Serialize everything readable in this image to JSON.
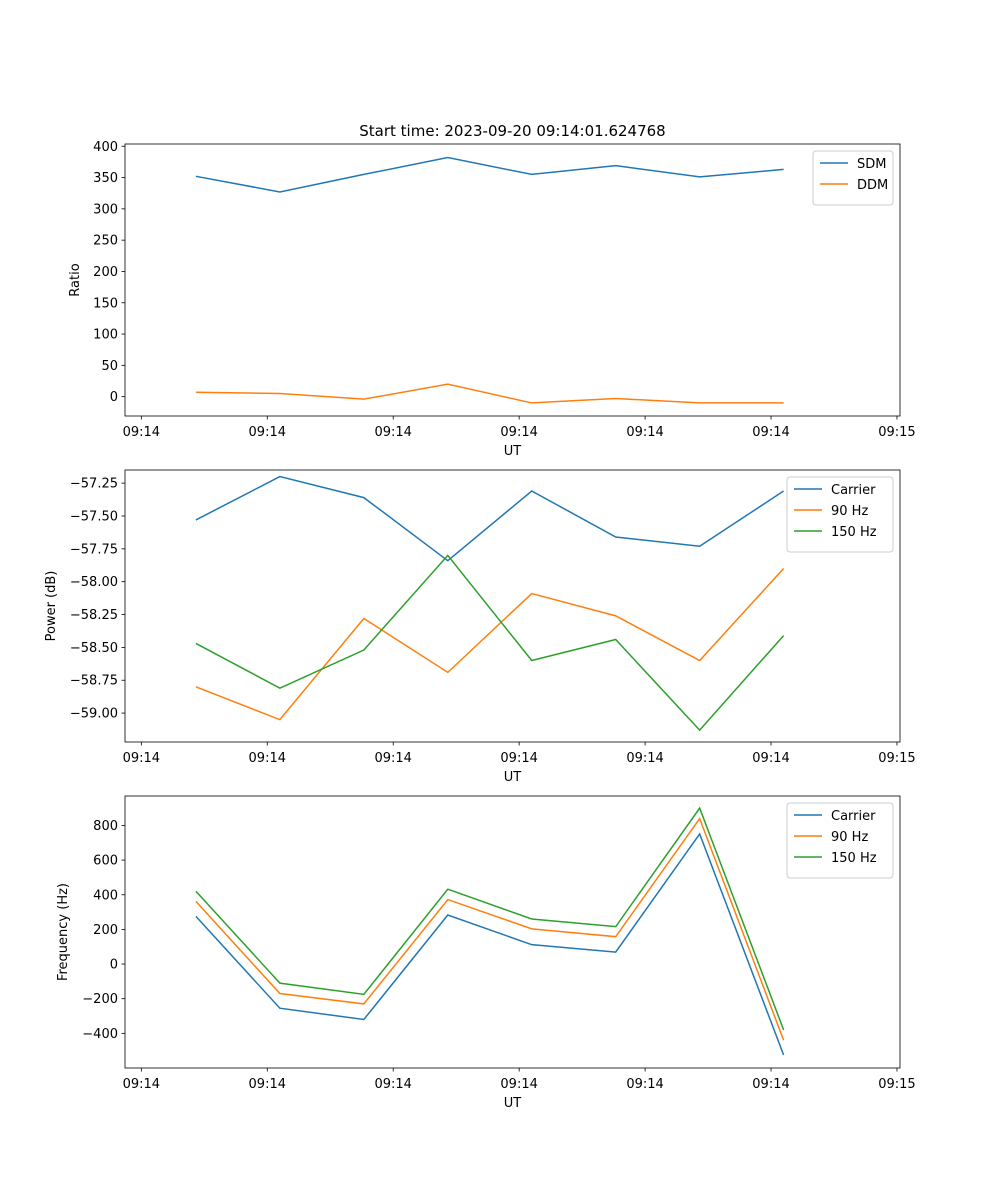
{
  "figure": {
    "title": "Start time: 2023-09-20 09:14:01.624768"
  },
  "chart_data": [
    {
      "type": "line",
      "title": "Start time: 2023-09-20 09:14:01.624768",
      "xlabel": "UT",
      "ylabel": "Ratio",
      "x_tick_labels": [
        "09:14",
        "09:14",
        "09:14",
        "09:14",
        "09:14",
        "09:14",
        "09:15"
      ],
      "x": [
        1,
        2,
        3,
        4,
        5,
        6,
        7,
        8
      ],
      "xlim": [
        0.1554,
        9.3861
      ],
      "ylim": [
        -30.9,
        403.6
      ],
      "y_ticks": [
        0,
        50,
        100,
        150,
        200,
        250,
        300,
        350,
        400
      ],
      "y_tick_labels": [
        "0",
        "50",
        "100",
        "150",
        "200",
        "250",
        "300",
        "350",
        "400"
      ],
      "legend_position": "top-right",
      "series": [
        {
          "name": "SDM",
          "color": "#1f77b4",
          "values": [
            352,
            327,
            355,
            382,
            355,
            369,
            351,
            363
          ]
        },
        {
          "name": "DDM",
          "color": "#ff7f0e",
          "values": [
            7,
            5,
            -4,
            20,
            -10,
            -3,
            -10,
            -10
          ]
        }
      ]
    },
    {
      "type": "line",
      "title": "",
      "xlabel": "UT",
      "ylabel": "Power (dB)",
      "x_tick_labels": [
        "09:14",
        "09:14",
        "09:14",
        "09:14",
        "09:14",
        "09:14",
        "09:15"
      ],
      "x": [
        1,
        2,
        3,
        4,
        5,
        6,
        7,
        8
      ],
      "xlim": [
        0.1554,
        9.3861
      ],
      "ylim": [
        -59.22,
        -57.15
      ],
      "y_ticks": [
        -59.0,
        -58.75,
        -58.5,
        -58.25,
        -58.0,
        -57.75,
        -57.5,
        -57.25
      ],
      "y_tick_labels": [
        "−59.00",
        "−58.75",
        "−58.50",
        "−58.25",
        "−58.00",
        "−57.75",
        "−57.50",
        "−57.25"
      ],
      "legend_position": "top-right",
      "series": [
        {
          "name": "Carrier",
          "color": "#1f77b4",
          "values": [
            -57.53,
            -57.2,
            -57.36,
            -57.84,
            -57.31,
            -57.66,
            -57.73,
            -57.31
          ]
        },
        {
          "name": "90 Hz",
          "color": "#ff7f0e",
          "values": [
            -58.8,
            -59.05,
            -58.28,
            -58.69,
            -58.09,
            -58.26,
            -58.6,
            -57.9
          ]
        },
        {
          "name": "150 Hz",
          "color": "#2ca02c",
          "values": [
            -58.47,
            -58.81,
            -58.52,
            -57.8,
            -58.6,
            -58.44,
            -59.13,
            -58.41
          ]
        }
      ]
    },
    {
      "type": "line",
      "title": "",
      "xlabel": "UT",
      "ylabel": "Frequency (Hz)",
      "x_tick_labels": [
        "09:14",
        "09:14",
        "09:14",
        "09:14",
        "09:14",
        "09:14",
        "09:15"
      ],
      "x": [
        1,
        2,
        3,
        4,
        5,
        6,
        7,
        8
      ],
      "xlim": [
        0.1554,
        9.3861
      ],
      "ylim": [
        -600,
        970
      ],
      "y_ticks": [
        -400,
        -200,
        0,
        200,
        400,
        600,
        800
      ],
      "y_tick_labels": [
        "−400",
        "−200",
        "0",
        "200",
        "400",
        "600",
        "800"
      ],
      "legend_position": "top-right",
      "series": [
        {
          "name": "Carrier",
          "color": "#1f77b4",
          "values": [
            275,
            -255,
            -320,
            283,
            112,
            69,
            751,
            -525
          ]
        },
        {
          "name": "90 Hz",
          "color": "#ff7f0e",
          "values": [
            362,
            -170,
            -230,
            372,
            203,
            158,
            840,
            -440
          ]
        },
        {
          "name": "150 Hz",
          "color": "#2ca02c",
          "values": [
            420,
            -110,
            -175,
            432,
            260,
            216,
            900,
            -380
          ]
        }
      ]
    }
  ]
}
